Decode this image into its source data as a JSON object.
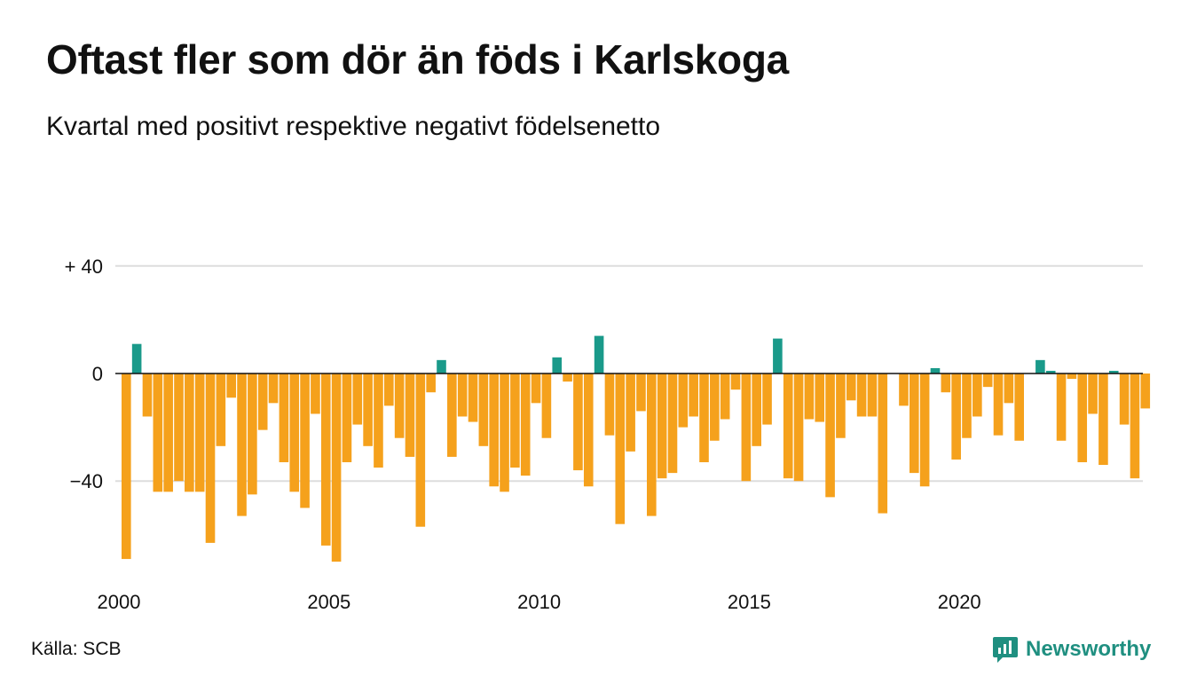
{
  "header": {
    "title": "Oftast fler som dör än föds i Karlskoga",
    "subtitle": "Kvartal med positivt respektive negativt födelsenetto"
  },
  "footer": {
    "source": "Källa: SCB",
    "brand": "Newsworthy",
    "brand_icon": "newsworthy-logo-icon"
  },
  "colors": {
    "positive": "#1a9a8a",
    "negative": "#f5a11c",
    "grid": "#dddddd",
    "zero_line": "#111111",
    "brand": "#1f8f80"
  },
  "chart_data": {
    "type": "bar",
    "title": "Oftast fler som dör än föds i Karlskoga",
    "subtitle": "Kvartal med positivt respektive negativt födelsenetto",
    "xlabel": "",
    "ylabel": "",
    "ylim": [
      -72,
      40
    ],
    "yticks": [
      40,
      0,
      -40
    ],
    "ytick_labels": [
      "+ 40",
      "0",
      "−40"
    ],
    "xticks": [
      "2000",
      "2005",
      "2010",
      "2015",
      "2020"
    ],
    "grid": true,
    "legend": "none",
    "start": "2000-Q1",
    "frequency": "quarterly",
    "values": [
      -69,
      11,
      -16,
      -44,
      -44,
      -40,
      -44,
      -44,
      -63,
      -27,
      -9,
      -53,
      -45,
      -21,
      -11,
      -33,
      -44,
      -50,
      -15,
      -64,
      -70,
      -33,
      -19,
      -27,
      -35,
      -12,
      -24,
      -31,
      -57,
      -7,
      5,
      -31,
      -16,
      -18,
      -27,
      -42,
      -44,
      -35,
      -38,
      -11,
      -24,
      6,
      -3,
      -36,
      -42,
      14,
      -23,
      -56,
      -29,
      -14,
      -53,
      -39,
      -37,
      -20,
      -16,
      -33,
      -25,
      -17,
      -6,
      -40,
      -27,
      -19,
      13,
      -39,
      -40,
      -17,
      -18,
      -46,
      -24,
      -10,
      -16,
      -16,
      -52,
      0,
      -12,
      -37,
      -42,
      2,
      -7,
      -32,
      -24,
      -16,
      -5,
      -23,
      -11,
      -25,
      0,
      5,
      1,
      -25,
      -2,
      -33,
      -15,
      -34,
      1,
      -19,
      -39,
      -13
    ]
  }
}
